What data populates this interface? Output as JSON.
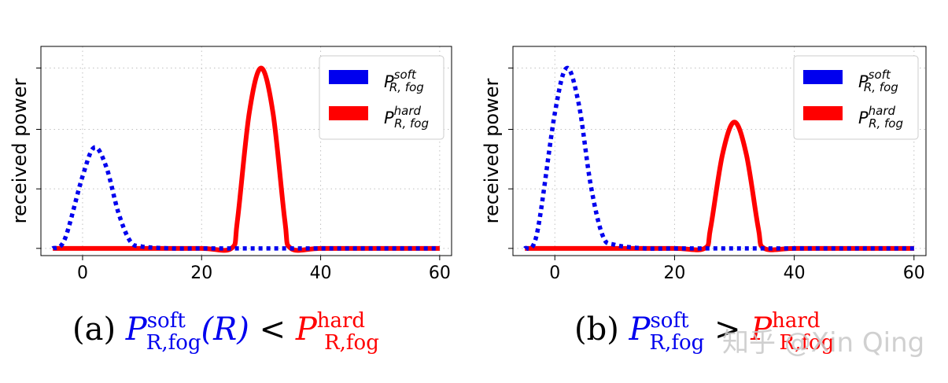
{
  "colors": {
    "soft": "#0000ee",
    "hard": "#ff0000",
    "axis": "#000000",
    "grid": "#c0c0c0"
  },
  "watermark": "知乎 @Xin Qing",
  "chart_data": [
    {
      "type": "line",
      "ylabel": "received power",
      "xlim": [
        -7,
        62
      ],
      "ylim": [
        -0.04,
        1.12
      ],
      "xticks": [
        0,
        20,
        40,
        60
      ],
      "xtick_labels": [
        "0",
        "20",
        "40",
        "60"
      ],
      "grid": true,
      "legend_position": "top-right",
      "series": [
        {
          "name_main": "P",
          "name_sup": "soft",
          "name_sub": "R, fog",
          "style": "dotted",
          "color": "soft",
          "x": [
            -5,
            -3,
            0,
            2,
            4,
            6,
            8,
            10,
            15,
            20,
            25,
            30,
            35,
            40,
            45,
            50,
            55,
            60
          ],
          "y": [
            0,
            0.05,
            0.4,
            0.56,
            0.45,
            0.2,
            0.04,
            0.01,
            0,
            0,
            0,
            0,
            0,
            0,
            0,
            0,
            0,
            0
          ]
        },
        {
          "name_main": "P",
          "name_sup": "hard",
          "name_sub": "R, fog",
          "style": "solid",
          "color": "hard",
          "x": [
            -5,
            0,
            10,
            20,
            25,
            26,
            28,
            30,
            32,
            34,
            35,
            40,
            50,
            60
          ],
          "y": [
            0,
            0,
            0,
            0,
            0,
            0.15,
            0.75,
            1.0,
            0.75,
            0.15,
            0,
            0,
            0,
            0
          ]
        }
      ],
      "caption": {
        "label": "(a)",
        "lhs_main": "P",
        "lhs_sup": "soft",
        "lhs_sub": "R,fog",
        "lhs_arg": "(R)",
        "relation": "<",
        "rhs_main": "P",
        "rhs_sup": "hard",
        "rhs_sub": "R,fog"
      }
    },
    {
      "type": "line",
      "ylabel": "received power",
      "xlim": [
        -7,
        62
      ],
      "ylim": [
        -0.04,
        1.12
      ],
      "xticks": [
        0,
        20,
        40,
        60
      ],
      "xtick_labels": [
        "0",
        "20",
        "40",
        "60"
      ],
      "grid": true,
      "legend_position": "top-right",
      "series": [
        {
          "name_main": "P",
          "name_sup": "soft",
          "name_sub": "R, fog",
          "style": "dotted",
          "color": "soft",
          "x": [
            -5,
            -3,
            0,
            2,
            4,
            6,
            8,
            10,
            15,
            20,
            25,
            30,
            35,
            40,
            45,
            50,
            55,
            60
          ],
          "y": [
            0,
            0.08,
            0.75,
            1.0,
            0.8,
            0.35,
            0.07,
            0.02,
            0,
            0,
            0,
            0,
            0,
            0,
            0,
            0,
            0,
            0
          ]
        },
        {
          "name_main": "P",
          "name_sup": "hard",
          "name_sub": "R, fog",
          "style": "solid",
          "color": "hard",
          "x": [
            -5,
            0,
            10,
            20,
            25,
            26,
            28,
            30,
            32,
            34,
            35,
            40,
            50,
            60
          ],
          "y": [
            0,
            0,
            0,
            0,
            0,
            0.11,
            0.52,
            0.7,
            0.52,
            0.11,
            0,
            0,
            0,
            0
          ]
        }
      ],
      "caption": {
        "label": "(b)",
        "lhs_main": "P",
        "lhs_sup": "soft",
        "lhs_sub": "R,fog",
        "lhs_arg": "",
        "relation": ">",
        "rhs_main": "P",
        "rhs_sup": "hard",
        "rhs_sub": "R,fog"
      }
    }
  ]
}
